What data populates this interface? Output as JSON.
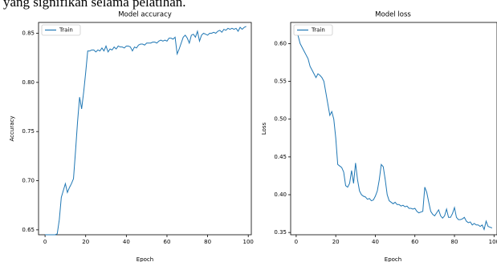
{
  "text": "yang signifikan selama pelatihan.",
  "chart_data": [
    {
      "type": "line",
      "title": "Model accuracy",
      "xlabel": "Epoch",
      "ylabel": "Accuracy",
      "legend": "upper left",
      "grid": false,
      "x": [
        0,
        1,
        2,
        3,
        4,
        5,
        6,
        7,
        8,
        9,
        10,
        11,
        12,
        13,
        14,
        15,
        16,
        17,
        18,
        19,
        20,
        21,
        22,
        23,
        24,
        25,
        26,
        27,
        28,
        29,
        30,
        31,
        32,
        33,
        34,
        35,
        36,
        37,
        38,
        39,
        40,
        41,
        42,
        43,
        44,
        45,
        46,
        47,
        48,
        49,
        50,
        51,
        52,
        53,
        54,
        55,
        56,
        57,
        58,
        59,
        60,
        61,
        62,
        63,
        64,
        65,
        66,
        67,
        68,
        69,
        70,
        71,
        72,
        73,
        74,
        75,
        76,
        77,
        78,
        79,
        80,
        81,
        82,
        83,
        84,
        85,
        86,
        87,
        88,
        89,
        90,
        91,
        92,
        93,
        94,
        95,
        96,
        97,
        98,
        99
      ],
      "series": [
        {
          "name": "Train",
          "color": "#1f77b4",
          "values": [
            0.645,
            0.645,
            0.645,
            0.645,
            0.645,
            0.645,
            0.646,
            0.66,
            0.683,
            0.69,
            0.697,
            0.688,
            0.693,
            0.697,
            0.702,
            0.73,
            0.76,
            0.785,
            0.773,
            0.79,
            0.81,
            0.832,
            0.832,
            0.833,
            0.833,
            0.831,
            0.833,
            0.832,
            0.835,
            0.832,
            0.837,
            0.831,
            0.834,
            0.833,
            0.836,
            0.834,
            0.837,
            0.836,
            0.836,
            0.835,
            0.837,
            0.837,
            0.836,
            0.832,
            0.836,
            0.835,
            0.838,
            0.839,
            0.839,
            0.838,
            0.84,
            0.84,
            0.84,
            0.841,
            0.841,
            0.84,
            0.842,
            0.843,
            0.842,
            0.843,
            0.842,
            0.845,
            0.845,
            0.844,
            0.846,
            0.829,
            0.834,
            0.84,
            0.846,
            0.848,
            0.845,
            0.84,
            0.848,
            0.849,
            0.846,
            0.852,
            0.842,
            0.848,
            0.85,
            0.849,
            0.848,
            0.85,
            0.85,
            0.851,
            0.85,
            0.852,
            0.853,
            0.851,
            0.854,
            0.853,
            0.855,
            0.854,
            0.855,
            0.854,
            0.855,
            0.852,
            0.856,
            0.854,
            0.856,
            0.857
          ]
        }
      ],
      "xlim": [
        -3.2,
        101.5
      ],
      "xticks": [
        0,
        20,
        40,
        60,
        80,
        100
      ],
      "ylim": [
        0.645,
        0.861
      ],
      "yticks": [
        0.65,
        {
          "value": 0.7,
          "label": "0.70"
        },
        0.75,
        {
          "value": 0.8,
          "label": "0.80"
        },
        0.85
      ]
    },
    {
      "type": "line",
      "title": "Model loss",
      "xlabel": "Epoch",
      "ylabel": "Loss",
      "legend": "upper left",
      "grid": false,
      "x": [
        0,
        1,
        2,
        3,
        4,
        5,
        6,
        7,
        8,
        9,
        10,
        11,
        12,
        13,
        14,
        15,
        16,
        17,
        18,
        19,
        20,
        21,
        22,
        23,
        24,
        25,
        26,
        27,
        28,
        29,
        30,
        31,
        32,
        33,
        34,
        35,
        36,
        37,
        38,
        39,
        40,
        41,
        42,
        43,
        44,
        45,
        46,
        47,
        48,
        49,
        50,
        51,
        52,
        53,
        54,
        55,
        56,
        57,
        58,
        59,
        60,
        61,
        62,
        63,
        64,
        65,
        66,
        67,
        68,
        69,
        70,
        71,
        72,
        73,
        74,
        75,
        76,
        77,
        78,
        79,
        80,
        81,
        82,
        83,
        84,
        85,
        86,
        87,
        88,
        89,
        90,
        91,
        92,
        93,
        94,
        95,
        96,
        97,
        98,
        99
      ],
      "series": [
        {
          "name": "Train",
          "color": "#1f77b4",
          "values": [
            0.617,
            0.61,
            0.6,
            0.595,
            0.59,
            0.585,
            0.58,
            0.57,
            0.565,
            0.56,
            0.555,
            0.56,
            0.558,
            0.555,
            0.55,
            0.535,
            0.52,
            0.505,
            0.51,
            0.5,
            0.475,
            0.44,
            0.438,
            0.436,
            0.43,
            0.412,
            0.41,
            0.415,
            0.432,
            0.415,
            0.442,
            0.42,
            0.405,
            0.4,
            0.398,
            0.397,
            0.394,
            0.395,
            0.392,
            0.393,
            0.398,
            0.405,
            0.42,
            0.44,
            0.437,
            0.42,
            0.4,
            0.392,
            0.39,
            0.388,
            0.39,
            0.387,
            0.387,
            0.385,
            0.386,
            0.384,
            0.385,
            0.382,
            0.382,
            0.381,
            0.382,
            0.378,
            0.376,
            0.377,
            0.378,
            0.41,
            0.403,
            0.39,
            0.378,
            0.374,
            0.372,
            0.376,
            0.38,
            0.372,
            0.369,
            0.372,
            0.381,
            0.37,
            0.37,
            0.375,
            0.383,
            0.37,
            0.367,
            0.367,
            0.368,
            0.37,
            0.365,
            0.363,
            0.364,
            0.36,
            0.362,
            0.36,
            0.36,
            0.358,
            0.36,
            0.354,
            0.365,
            0.358,
            0.357,
            0.356
          ]
        }
      ],
      "xlim": [
        -2.8,
        101.5
      ],
      "xticks": [
        0,
        20,
        40,
        60,
        80,
        100
      ],
      "ylim": [
        0.347,
        0.628
      ],
      "yticks": [
        0.35,
        {
          "value": 0.4,
          "label": "0.40"
        },
        0.45,
        {
          "value": 0.5,
          "label": "0.50"
        },
        0.55,
        {
          "value": 0.6,
          "label": "0.60"
        }
      ]
    }
  ]
}
